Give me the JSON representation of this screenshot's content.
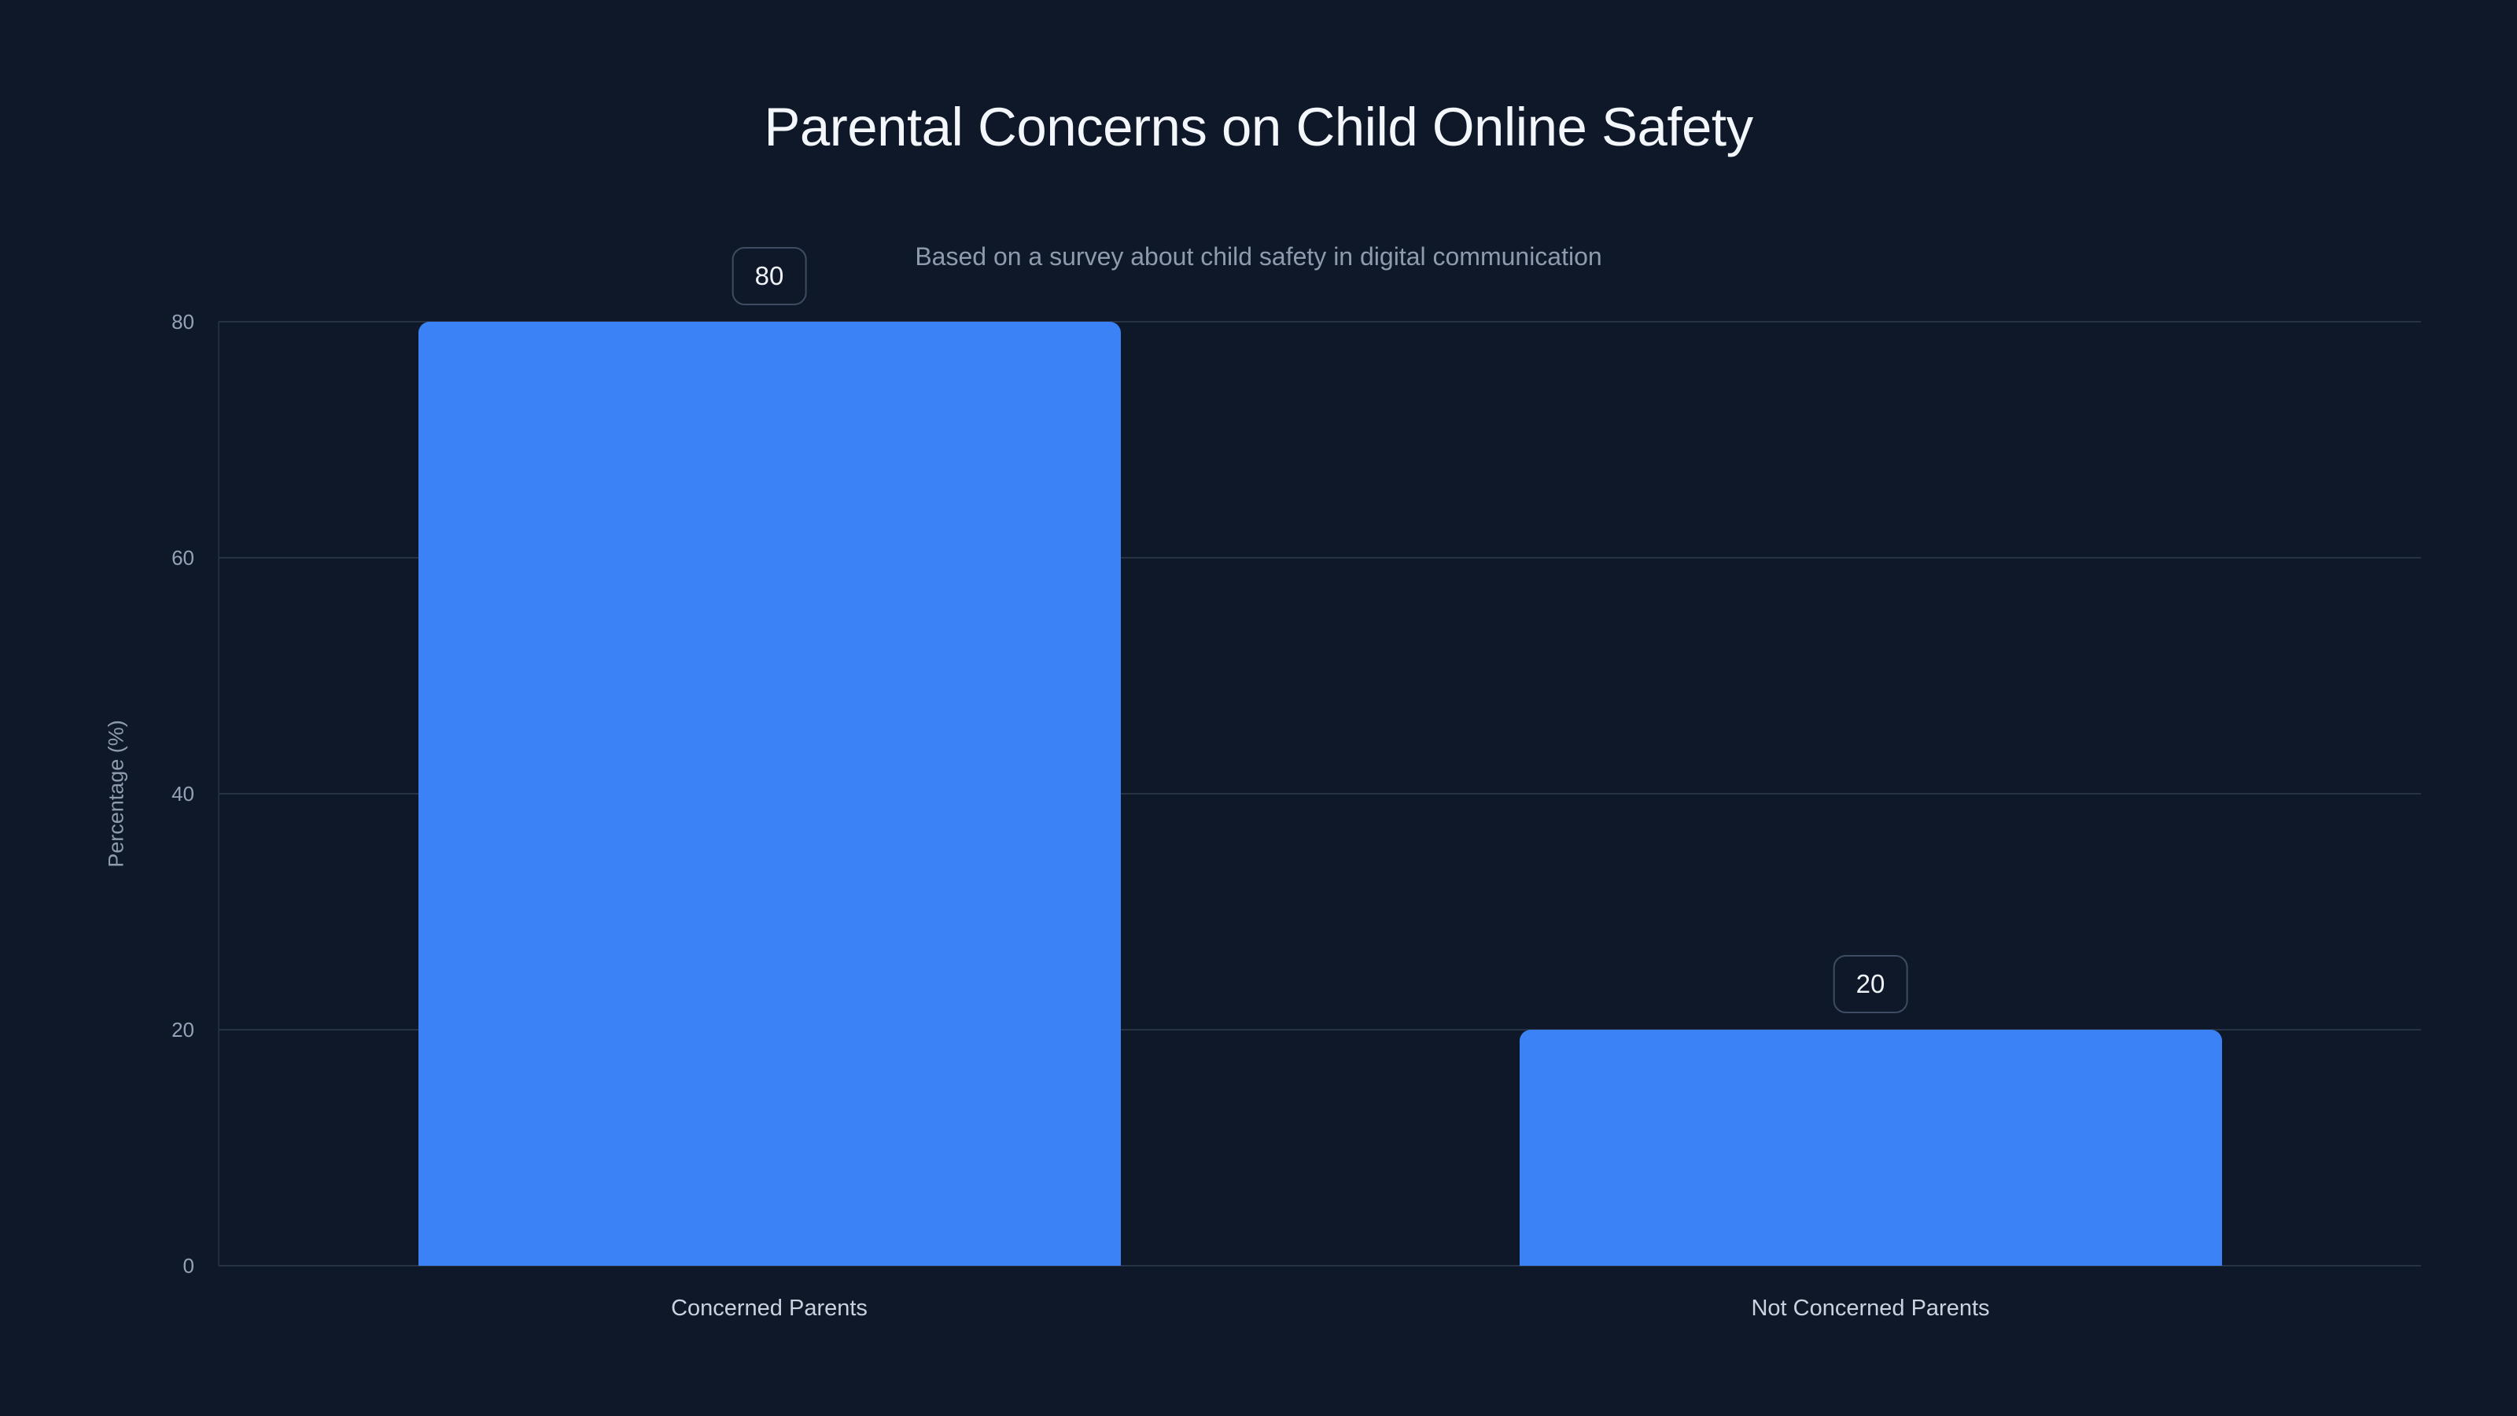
{
  "chart": {
    "title": "Parental Concerns on Child Online Safety",
    "subtitle": "Based on a survey about child safety in digital communication",
    "ylabel": "Percentage (%)"
  },
  "chart_data": {
    "type": "bar",
    "title": "Parental Concerns on Child Online Safety",
    "subtitle": "Based on a survey about child safety in digital communication",
    "categories": [
      "Concerned Parents",
      "Not Concerned Parents"
    ],
    "values": [
      80,
      20
    ],
    "value_labels": [
      "80",
      "20"
    ],
    "xlabel": "",
    "ylabel": "Percentage (%)",
    "ylim": [
      0,
      80
    ],
    "yticks": [
      0,
      20,
      40,
      60,
      80
    ],
    "grid": true,
    "legend": false
  },
  "colors": {
    "background": "#0F1828",
    "bar": "#3B82F6",
    "title_text": "#F3F6FA",
    "subtitle_text": "#8E9BAE",
    "tick_text": "#94A3B8",
    "category_text": "#C9D3DF",
    "gridline": "#283245",
    "axis_line": "#222C3F",
    "badge_border": "#3E4C63",
    "badge_text": "#EEF2F7"
  }
}
